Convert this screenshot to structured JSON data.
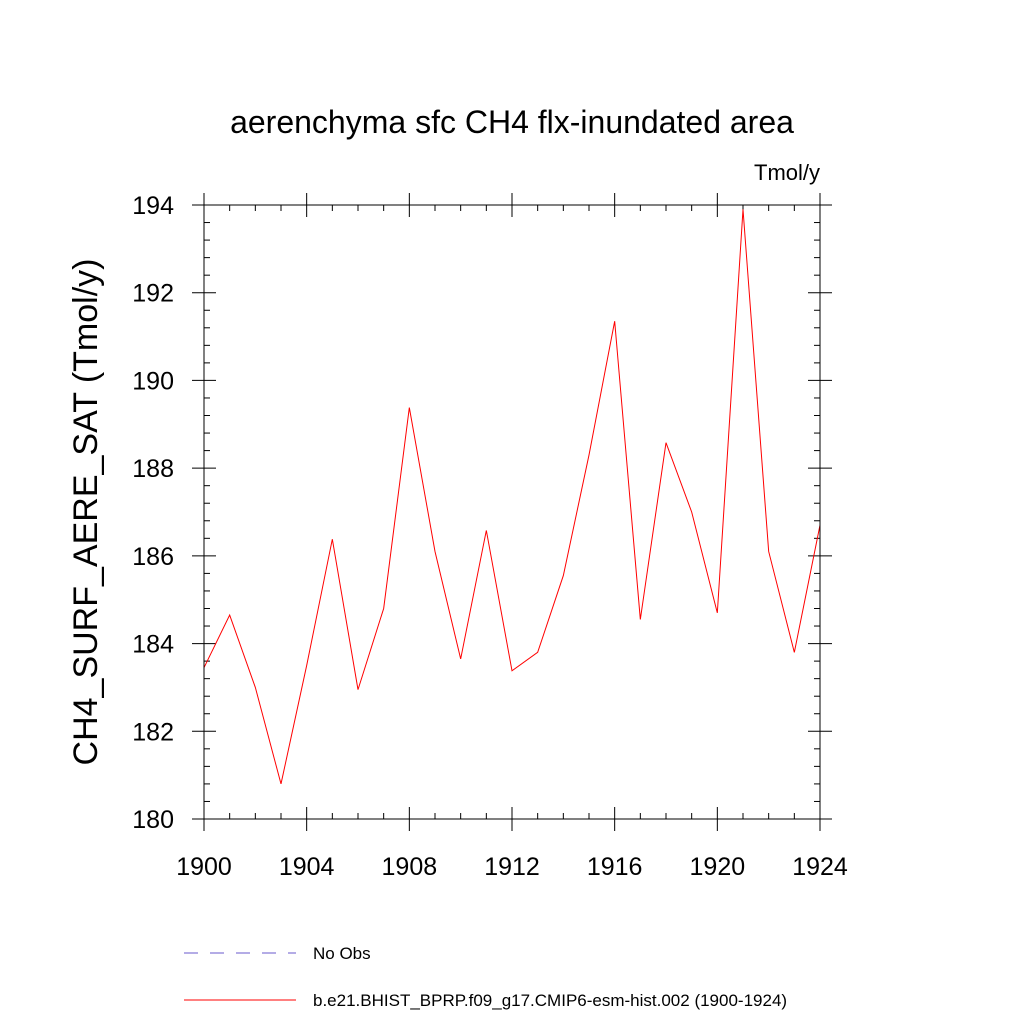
{
  "chart_data": {
    "type": "line",
    "title": "aerenchyma sfc CH4 flx-inundated area",
    "units_label": "Tmol/y",
    "xlabel": "",
    "ylabel": "CH4_SURF_AERE_SAT  (Tmol/y)",
    "xlim": [
      1900,
      1924
    ],
    "ylim": [
      180,
      194
    ],
    "xticks": [
      1900,
      1904,
      1908,
      1912,
      1916,
      1920,
      1924
    ],
    "xtick_labels": [
      "1900",
      "1904",
      "1908",
      "1912",
      "1916",
      "1920",
      "1924"
    ],
    "yticks": [
      180,
      182,
      184,
      186,
      188,
      190,
      192,
      194
    ],
    "ytick_labels": [
      "180",
      "182",
      "184",
      "186",
      "188",
      "190",
      "192",
      "194"
    ],
    "grid": false,
    "legend_position": "bottom",
    "series": [
      {
        "name": "b.e21.BHIST_BPRP.f09_g17.CMIP6-esm-hist.002 (1900-1924)",
        "color": "#ff0000",
        "style": "solid",
        "x": [
          1900,
          1901,
          1902,
          1903,
          1904,
          1905,
          1906,
          1907,
          1908,
          1909,
          1910,
          1911,
          1912,
          1913,
          1914,
          1915,
          1916,
          1917,
          1918,
          1919,
          1920,
          1921,
          1922,
          1923,
          1924
        ],
        "values": [
          183.45,
          184.65,
          183.0,
          180.8,
          183.5,
          186.38,
          182.95,
          184.8,
          189.38,
          186.1,
          183.65,
          186.58,
          183.38,
          183.8,
          185.55,
          188.3,
          191.35,
          184.55,
          188.58,
          187.0,
          184.7,
          193.9,
          186.1,
          183.8,
          186.7
        ]
      }
    ],
    "legend": [
      {
        "label": "No Obs",
        "color": "#6a5acd",
        "style": "dashed"
      },
      {
        "label": "b.e21.BHIST_BPRP.f09_g17.CMIP6-esm-hist.002 (1900-1924)",
        "color": "#ff0000",
        "style": "solid"
      }
    ]
  }
}
